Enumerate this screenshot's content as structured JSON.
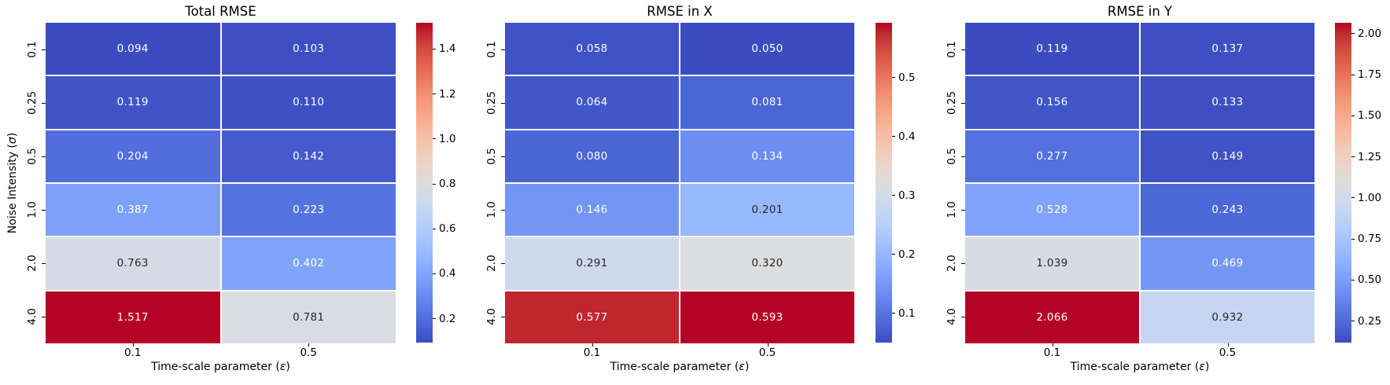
{
  "figure": {
    "background": "#ffffff",
    "colormap": "coolwarm",
    "colormap_colors": {
      "low": "#3b4cc0",
      "mid": "#dddddd",
      "high": "#b40426"
    },
    "annotation_colors": {
      "light_text": "#ffffff",
      "dark_text": "#262626"
    }
  },
  "chart_data": [
    {
      "type": "heatmap",
      "title": "Total RMSE",
      "xlabel": "Time-scale parameter (ε)",
      "ylabel": "Noise Intensity (σ)",
      "x_categories": [
        "0.1",
        "0.5"
      ],
      "y_categories": [
        "0.1",
        "0.25",
        "0.5",
        "1.0",
        "2.0",
        "4.0"
      ],
      "values": [
        [
          0.094,
          0.103
        ],
        [
          0.119,
          0.11
        ],
        [
          0.204,
          0.142
        ],
        [
          0.387,
          0.223
        ],
        [
          0.763,
          0.402
        ],
        [
          1.517,
          0.781
        ]
      ],
      "cell_labels": [
        [
          "0.094",
          "0.103"
        ],
        [
          "0.119",
          "0.110"
        ],
        [
          "0.204",
          "0.142"
        ],
        [
          "0.387",
          "0.223"
        ],
        [
          "0.763",
          "0.402"
        ],
        [
          "1.517",
          "0.781"
        ]
      ],
      "vmin": 0.094,
      "vmax": 1.517,
      "colorbar_ticks": [
        0.2,
        0.4,
        0.6,
        0.8,
        1.0,
        1.2,
        1.4
      ],
      "colorbar_tick_labels": [
        "0.2",
        "0.4",
        "0.6",
        "0.8",
        "1.0",
        "1.2",
        "1.4"
      ],
      "legend_position": "right-colorbar",
      "grid": false
    },
    {
      "type": "heatmap",
      "title": "RMSE in X",
      "xlabel": "Time-scale parameter (ε)",
      "ylabel": "",
      "x_categories": [
        "0.1",
        "0.5"
      ],
      "y_categories": [
        "0.1",
        "0.25",
        "0.5",
        "1.0",
        "2.0",
        "4.0"
      ],
      "values": [
        [
          0.058,
          0.05
        ],
        [
          0.064,
          0.081
        ],
        [
          0.08,
          0.134
        ],
        [
          0.146,
          0.201
        ],
        [
          0.291,
          0.32
        ],
        [
          0.577,
          0.593
        ]
      ],
      "cell_labels": [
        [
          "0.058",
          "0.050"
        ],
        [
          "0.064",
          "0.081"
        ],
        [
          "0.080",
          "0.134"
        ],
        [
          "0.146",
          "0.201"
        ],
        [
          "0.291",
          "0.320"
        ],
        [
          "0.577",
          "0.593"
        ]
      ],
      "vmin": 0.05,
      "vmax": 0.593,
      "colorbar_ticks": [
        0.1,
        0.2,
        0.3,
        0.4,
        0.5
      ],
      "colorbar_tick_labels": [
        "0.1",
        "0.2",
        "0.3",
        "0.4",
        "0.5"
      ],
      "legend_position": "right-colorbar",
      "grid": false
    },
    {
      "type": "heatmap",
      "title": "RMSE in Y",
      "xlabel": "Time-scale parameter (ε)",
      "ylabel": "",
      "x_categories": [
        "0.1",
        "0.5"
      ],
      "y_categories": [
        "0.1",
        "0.25",
        "0.5",
        "1.0",
        "2.0",
        "4.0"
      ],
      "values": [
        [
          0.119,
          0.137
        ],
        [
          0.156,
          0.133
        ],
        [
          0.277,
          0.149
        ],
        [
          0.528,
          0.243
        ],
        [
          1.039,
          0.469
        ],
        [
          2.066,
          0.932
        ]
      ],
      "cell_labels": [
        [
          "0.119",
          "0.137"
        ],
        [
          "0.156",
          "0.133"
        ],
        [
          "0.277",
          "0.149"
        ],
        [
          "0.528",
          "0.243"
        ],
        [
          "1.039",
          "0.469"
        ],
        [
          "2.066",
          "0.932"
        ]
      ],
      "vmin": 0.119,
      "vmax": 2.066,
      "colorbar_ticks": [
        0.25,
        0.5,
        0.75,
        1.0,
        1.25,
        1.5,
        1.75,
        2.0
      ],
      "colorbar_tick_labels": [
        "0.25",
        "0.50",
        "0.75",
        "1.00",
        "1.25",
        "1.50",
        "1.75",
        "2.00"
      ],
      "legend_position": "right-colorbar",
      "grid": false
    }
  ]
}
